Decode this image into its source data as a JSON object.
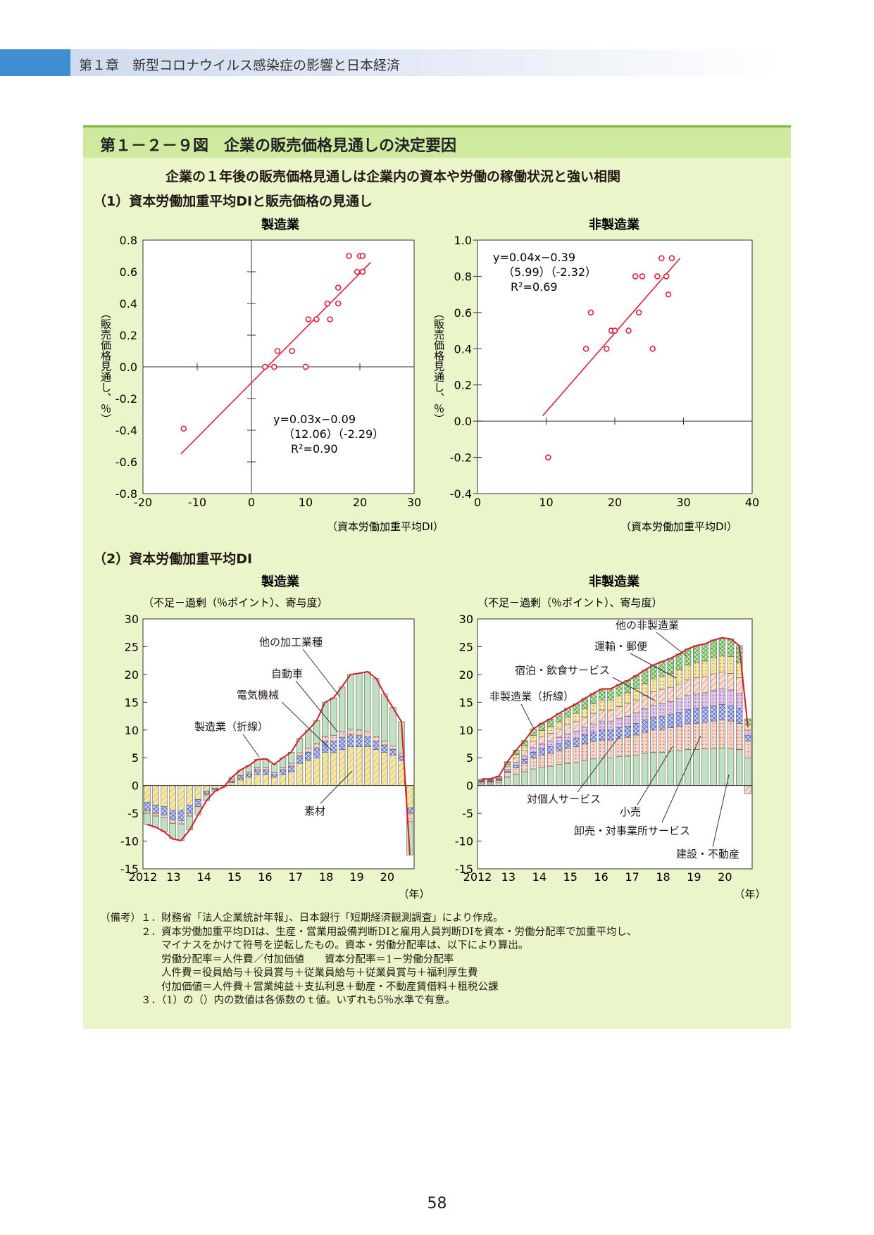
{
  "header": {
    "chapter": "第１章　新型コロナウイルス感染症の影響と日本経済"
  },
  "figure": {
    "title": "第１－２－９図　企業の販売価格見通しの決定要因",
    "subtitle": "企業の１年後の販売価格見通しは企業内の資本や労働の稼働状況と強い相関",
    "section1": "（1）資本労働加重平均DIと販売価格の見通し",
    "section2": "（2）資本労働加重平均DI"
  },
  "chart_data": [
    {
      "type": "scatter",
      "title": "製造業",
      "xlabel": "（資本労働加重平均DI）",
      "ylabel": "（販売価格見通し、％）",
      "xlim": [
        -20,
        30
      ],
      "ylim": [
        -0.8,
        0.8
      ],
      "xticks": [
        "-20",
        "-10",
        "0",
        "10",
        "20",
        "30"
      ],
      "yticks": [
        "0.8",
        "0.6",
        "0.4",
        "0.2",
        "0.0",
        "-0.2",
        "-0.4",
        "-0.6",
        "-0.8"
      ],
      "points": [
        [
          -12.5,
          -0.39
        ],
        [
          2.5,
          0
        ],
        [
          4.2,
          0
        ],
        [
          4.8,
          0.1
        ],
        [
          7.5,
          0.1
        ],
        [
          10,
          0
        ],
        [
          10.5,
          0.3
        ],
        [
          12,
          0.3
        ],
        [
          14,
          0.4
        ],
        [
          14.5,
          0.3
        ],
        [
          16,
          0.5
        ],
        [
          16,
          0.4
        ],
        [
          18,
          0.7
        ],
        [
          19.5,
          0.6
        ],
        [
          20,
          0.7
        ],
        [
          20.5,
          0.7
        ],
        [
          20.5,
          0.6
        ]
      ],
      "fit": {
        "x": [
          -13,
          22
        ],
        "y": [
          -0.55,
          0.66
        ]
      },
      "equation": {
        "line1": "y=0.03x−0.09",
        "line2": "（12.06）（-2.29）",
        "line3": "R²=0.90"
      }
    },
    {
      "type": "scatter",
      "title": "非製造業",
      "xlabel": "（資本労働加重平均DI）",
      "ylabel": "（販売価格見通し、％）",
      "xlim": [
        0,
        40
      ],
      "ylim": [
        -0.4,
        1.0
      ],
      "xticks": [
        "0",
        "10",
        "20",
        "30",
        "40"
      ],
      "yticks": [
        "1.0",
        "0.8",
        "0.6",
        "0.4",
        "0.2",
        "0.0",
        "-0.2",
        "-0.4"
      ],
      "points": [
        [
          10.3,
          -0.2
        ],
        [
          15.8,
          0.4
        ],
        [
          16.5,
          0.6
        ],
        [
          18.8,
          0.4
        ],
        [
          19.5,
          0.5
        ],
        [
          20,
          0.5
        ],
        [
          22,
          0.5
        ],
        [
          23,
          0.8
        ],
        [
          23.5,
          0.6
        ],
        [
          24,
          0.8
        ],
        [
          25.5,
          0.4
        ],
        [
          26.2,
          0.8
        ],
        [
          26.8,
          0.9
        ],
        [
          27.5,
          0.8
        ],
        [
          27.8,
          0.7
        ],
        [
          28.3,
          0.9
        ]
      ],
      "fit": {
        "x": [
          9.5,
          29.5
        ],
        "y": [
          0.03,
          0.9
        ]
      },
      "equation": {
        "line1": "y=0.04x−0.39",
        "line2": "（5.99）（-2.32）",
        "line3": "R²=0.69"
      }
    },
    {
      "type": "bar",
      "stacked": true,
      "title": "製造業",
      "unit_note": "（不足－過剰（％ポイント）、寄与度）",
      "xlabel": "（年）",
      "xticks": [
        "2012",
        "13",
        "14",
        "15",
        "16",
        "17",
        "18",
        "19",
        "20"
      ],
      "ylim": [
        -15,
        30
      ],
      "yticks": [
        "30",
        "25",
        "20",
        "15",
        "10",
        "5",
        "0",
        "-5",
        "-10",
        "-15"
      ],
      "series": [
        {
          "name": "素材",
          "color": "#f4e7a6",
          "pattern": "diag",
          "values": [
            -3,
            -3.5,
            -3.8,
            -4.5,
            -4.5,
            -3.5,
            -2.5,
            -1,
            -0.5,
            -0.3,
            0.5,
            1,
            1.5,
            2,
            2,
            1.5,
            2,
            2.5,
            4,
            4.5,
            5,
            6,
            6,
            6.5,
            7,
            7,
            7,
            6.5,
            6,
            5.5,
            4.5,
            -4
          ]
        },
        {
          "name": "電気機械",
          "color": "#c8cef0",
          "pattern": "cross",
          "values": [
            -1.5,
            -1.5,
            -1.5,
            -1.7,
            -1.8,
            -1.5,
            -1,
            -0.5,
            -0.2,
            0,
            0.3,
            0.5,
            0.6,
            0.8,
            0.8,
            0.5,
            0.8,
            1,
            1.3,
            1.5,
            1.8,
            2,
            2,
            2.2,
            2.2,
            2,
            1.8,
            1.5,
            1.3,
            1,
            0.8,
            -1
          ]
        },
        {
          "name": "自動車",
          "color": "#f6d6c8",
          "pattern": "dots",
          "values": [
            -0.5,
            -0.5,
            -0.5,
            -0.6,
            -0.6,
            -0.5,
            -0.3,
            -0.2,
            0,
            0,
            0.2,
            0.3,
            0.3,
            0.4,
            0.4,
            0.3,
            0.4,
            0.5,
            0.6,
            0.7,
            0.8,
            0.9,
            1,
            1,
            1,
            1,
            0.9,
            0.8,
            0.7,
            0.6,
            0.5,
            -1.5
          ]
        },
        {
          "name": "他の加工業種",
          "color": "#bfe1bf",
          "pattern": "none",
          "values": [
            -2,
            -2,
            -2.5,
            -2.8,
            -3,
            -2.5,
            -1.5,
            -1,
            -0.3,
            0,
            0.5,
            1,
            1.2,
            1.5,
            1.6,
            1.5,
            1.8,
            2,
            2.6,
            3.3,
            4.1,
            6.1,
            6.8,
            8.1,
            9.8,
            10.2,
            10.8,
            10.5,
            8.5,
            7,
            5.7,
            -6
          ]
        }
      ],
      "line": {
        "name": "製造業（折線）",
        "color": "#d7192d",
        "values": [
          -7,
          -7.5,
          -8.3,
          -9.6,
          -9.9,
          -8,
          -5.3,
          -2.7,
          -1,
          -0.3,
          1.5,
          2.8,
          3.6,
          4.7,
          4.8,
          3.8,
          5,
          6,
          8.5,
          10,
          11.7,
          15,
          15.8,
          17.8,
          20,
          20.2,
          20.5,
          19.3,
          16.5,
          14,
          11.5,
          -12.5
        ]
      },
      "annotations": [
        "他の加工業種",
        "自動車",
        "電気機械",
        "製造業（折線）",
        "素材"
      ]
    },
    {
      "type": "bar",
      "stacked": true,
      "title": "非製造業",
      "unit_note": "（不足－過剰（％ポイント）、寄与度）",
      "xlabel": "（年）",
      "xticks": [
        "2012",
        "13",
        "14",
        "15",
        "16",
        "17",
        "18",
        "19",
        "20"
      ],
      "ylim": [
        -15,
        30
      ],
      "yticks": [
        "30",
        "25",
        "20",
        "15",
        "10",
        "5",
        "0",
        "-5",
        "-10",
        "-15"
      ],
      "series": [
        {
          "name": "建設・不動産",
          "color": "#bfe1bf",
          "pattern": "none",
          "values": [
            0.3,
            0.3,
            0.5,
            1.5,
            2,
            2.5,
            3,
            3.3,
            3.5,
            3.8,
            4,
            4.2,
            4.5,
            4.8,
            5,
            5,
            5.2,
            5.3,
            5.5,
            5.8,
            6,
            6,
            6.2,
            6.3,
            6.5,
            6.5,
            6.6,
            6.7,
            6.8,
            6.7,
            6.5,
            5
          ]
        },
        {
          "name": "卸売・対事業所サービス",
          "color": "#f6d6c8",
          "pattern": "dots",
          "values": [
            0.3,
            0.3,
            0.4,
            0.8,
            1.2,
            1.5,
            2,
            2.2,
            2.3,
            2.5,
            2.7,
            2.8,
            3,
            3.1,
            3.2,
            3.2,
            3.3,
            3.4,
            3.6,
            3.8,
            4,
            4.1,
            4.2,
            4.4,
            4.6,
            4.7,
            4.8,
            4.9,
            5,
            4.9,
            4.7,
            3
          ]
        },
        {
          "name": "小売",
          "color": "#c8cef0",
          "pattern": "cross",
          "values": [
            0.1,
            0.1,
            0.1,
            0.3,
            0.5,
            0.7,
            1,
            1.1,
            1.2,
            1.3,
            1.4,
            1.5,
            1.6,
            1.7,
            1.8,
            1.8,
            1.9,
            2,
            2.1,
            2.2,
            2.3,
            2.4,
            2.4,
            2.5,
            2.6,
            2.7,
            2.7,
            2.8,
            2.8,
            2.8,
            2.7,
            1
          ]
        },
        {
          "name": "対個人サービス",
          "color": "#ddc8ec",
          "pattern": "dots",
          "values": [
            0.1,
            0.1,
            0.1,
            0.3,
            0.5,
            0.6,
            0.8,
            0.9,
            1,
            1.1,
            1.2,
            1.3,
            1.4,
            1.5,
            1.6,
            1.6,
            1.7,
            1.8,
            1.9,
            2,
            2.1,
            2.2,
            2.3,
            2.4,
            2.5,
            2.6,
            2.6,
            2.7,
            2.8,
            2.8,
            2.7,
            1
          ]
        },
        {
          "name": "宿泊・飲食サービス",
          "color": "#f9dcd2",
          "pattern": "diag",
          "values": [
            0.1,
            0.1,
            0.2,
            0.5,
            0.8,
            1,
            1.2,
            1.3,
            1.4,
            1.5,
            1.6,
            1.7,
            1.8,
            1.9,
            2,
            2,
            2.1,
            2.2,
            2.3,
            2.4,
            2.5,
            2.6,
            2.6,
            2.7,
            2.8,
            2.9,
            2.9,
            3,
            3,
            3,
            2.8,
            -1.5
          ]
        },
        {
          "name": "運輸・郵便",
          "color": "#f4e7a6",
          "pattern": "dots",
          "values": [
            0.1,
            0.1,
            0.2,
            0.4,
            0.6,
            0.8,
            1,
            1.1,
            1.2,
            1.3,
            1.4,
            1.5,
            1.6,
            1.7,
            1.8,
            1.8,
            1.9,
            2,
            2.1,
            2.2,
            2.3,
            2.4,
            2.5,
            2.6,
            2.7,
            2.8,
            2.8,
            2.9,
            3,
            3,
            2.8,
            1
          ]
        },
        {
          "name": "他の非製造業",
          "color": "#c9e6b0",
          "pattern": "cross",
          "values": [
            0.1,
            0.1,
            0.2,
            0.5,
            0.8,
            1,
            1.2,
            1.3,
            1.4,
            1.5,
            1.6,
            1.7,
            1.8,
            1.9,
            2,
            2,
            2.1,
            2.2,
            2.3,
            2.4,
            2.5,
            2.6,
            2.7,
            2.8,
            2.9,
            3,
            3.1,
            3.2,
            3.2,
            3.2,
            3,
            1
          ]
        }
      ],
      "line": {
        "name": "非製造業（折線）",
        "color": "#d7192d",
        "values": [
          1.2,
          1.2,
          1.7,
          4.3,
          6.4,
          8.1,
          10.2,
          11.2,
          12,
          13,
          13.9,
          14.7,
          15.7,
          16.6,
          17.4,
          17.4,
          18.2,
          18.9,
          19.8,
          20.8,
          21.7,
          22.3,
          22.9,
          23.7,
          24.6,
          25.2,
          25.5,
          26.2,
          26.6,
          26.4,
          25.2,
          10.5
        ]
      },
      "annotations": [
        "他の非製造業",
        "運輸・郵便",
        "宿泊・飲食サービス",
        "非製造業（折線）",
        "対個人サービス",
        "小売",
        "卸売・対事業所サービス",
        "建設・不動産"
      ]
    }
  ],
  "notes": [
    "（備考）１．財務省「法人企業統計年報」、日本銀行「短期経済観測調査」により作成。",
    "　　　　２．資本労働加重平均DIは、生産・営業用設備判断DIと雇用人員判断DIを資本・労働分配率で加重平均し、",
    "　　　　　　マイナスをかけて符号を逆転したもの。資本・労働分配率は、以下により算出。",
    "　　　　　　労働分配率＝人件費／付加価値　　資本分配率＝1－労働分配率",
    "　　　　　　人件費＝役員給与＋役員賞与＋従業員給与＋従業員賞与＋福利厚生費",
    "　　　　　　付加価値＝人件費＋営業純益＋支払利息＋動産・不動産賃借料＋租税公課",
    "　　　　３．（1）の（）内の数値は各係数のｔ値。いずれも5％水準で有意。"
  ],
  "page_number": "58"
}
